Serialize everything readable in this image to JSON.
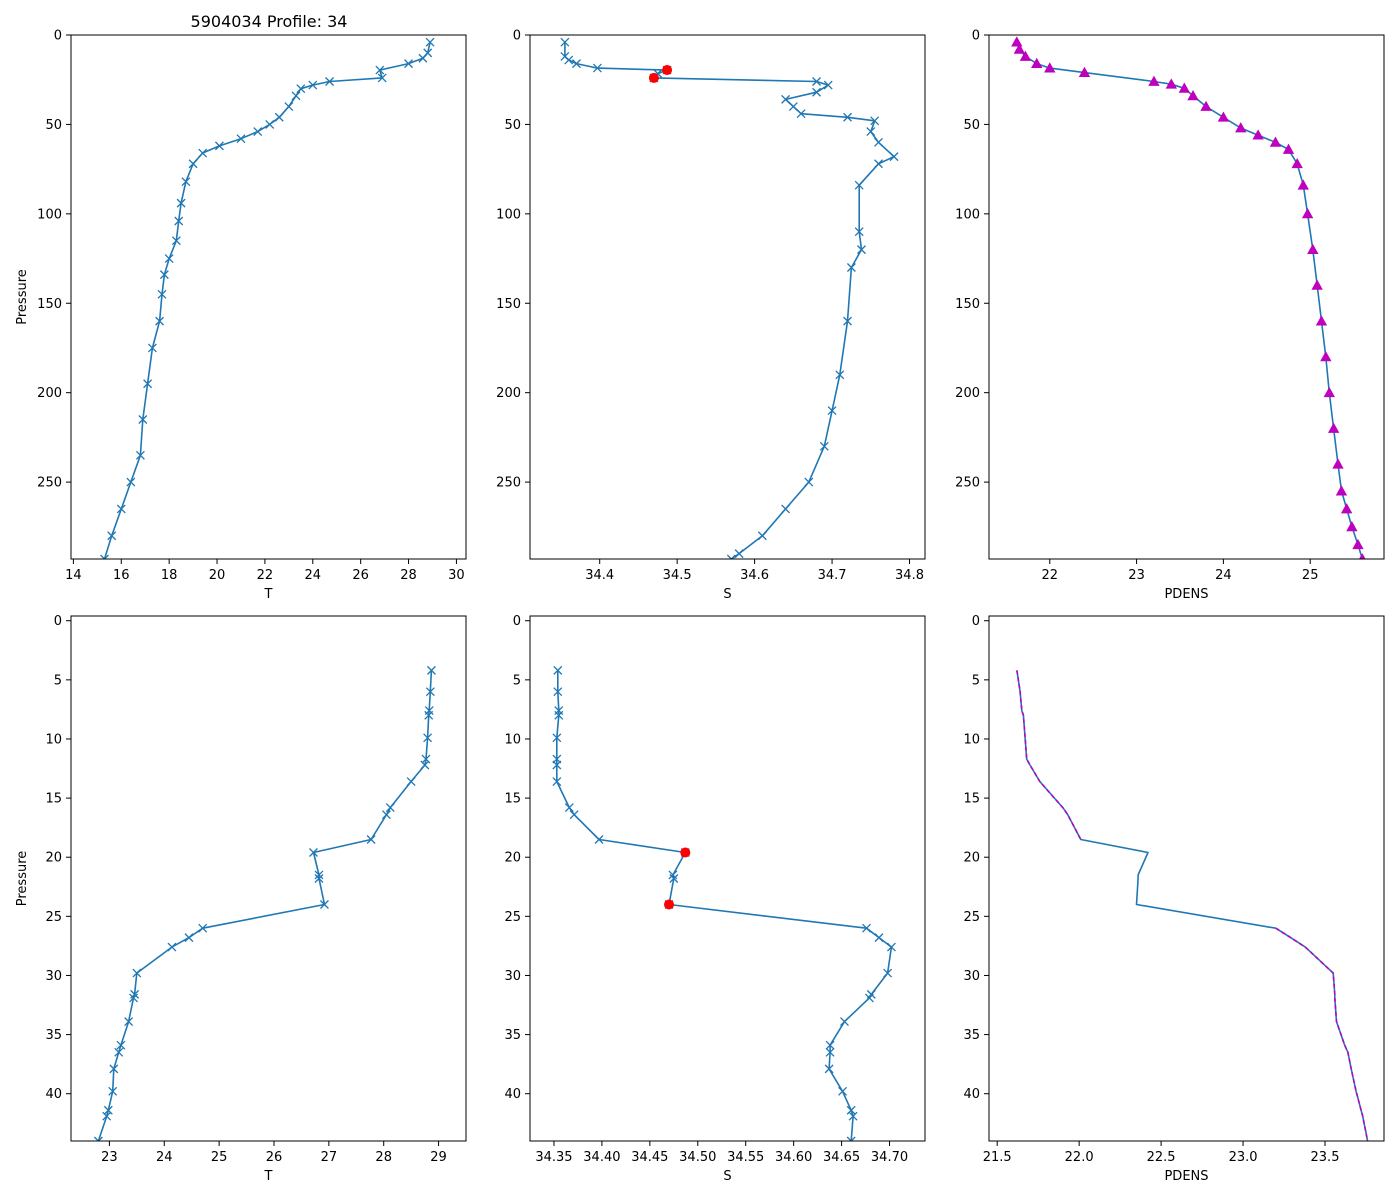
{
  "figure_title": "5904034 Profile: 34",
  "colors": {
    "line": "#1f77b4",
    "flag": "#ff0000",
    "pdens": "#bf00bf"
  },
  "chart_data": [
    {
      "id": "t-full",
      "type": "line",
      "xlabel": "T",
      "ylabel": "Pressure",
      "xlim": [
        13.9,
        30.4
      ],
      "ylim": [
        293,
        0
      ],
      "xticks": [
        14,
        16,
        18,
        20,
        22,
        24,
        26,
        28,
        30
      ],
      "yticks": [
        0,
        50,
        100,
        150,
        200,
        250
      ],
      "marker": "x",
      "series": [
        {
          "name": "T",
          "x": [
            28.9,
            28.8,
            28.6,
            28.0,
            26.8,
            26.9,
            24.7,
            24.0,
            23.5,
            23.3,
            23.0,
            22.6,
            22.2,
            21.7,
            21.0,
            20.1,
            19.4,
            19.0,
            18.7,
            18.5,
            18.4,
            18.3,
            18.0,
            17.8,
            17.7,
            17.6,
            17.3,
            17.1,
            16.9,
            16.8,
            16.4,
            16.0,
            15.6,
            15.3
          ],
          "y": [
            4,
            10,
            13,
            16,
            19.6,
            24,
            26,
            28,
            30,
            34,
            40,
            46,
            50,
            54,
            58,
            62,
            66,
            72,
            82,
            94,
            104,
            115,
            125,
            134,
            145,
            160,
            175,
            195,
            215,
            235,
            250,
            265,
            280,
            293
          ]
        }
      ]
    },
    {
      "id": "s-full",
      "type": "line",
      "xlabel": "S",
      "ylabel": "",
      "xlim": [
        34.31,
        34.82
      ],
      "ylim": [
        293,
        0
      ],
      "xticks": [
        34.4,
        34.5,
        34.6,
        34.7,
        34.8
      ],
      "xtick_labels": [
        "34.4",
        "34.5",
        "34.6",
        "34.7",
        "34.8"
      ],
      "yticks": [
        0,
        50,
        100,
        150,
        200,
        250
      ],
      "marker": "x",
      "series": [
        {
          "name": "S",
          "x": [
            34.355,
            34.355,
            34.36,
            34.37,
            34.397,
            34.487,
            34.475,
            34.47,
            34.68,
            34.695,
            34.68,
            34.64,
            34.65,
            34.66,
            34.72,
            34.755,
            34.75,
            34.76,
            34.78,
            34.76,
            34.735,
            34.735,
            34.738,
            34.725,
            34.72,
            34.71,
            34.7,
            34.69,
            34.67,
            34.64,
            34.61,
            34.58,
            34.57
          ],
          "y": [
            4,
            12,
            14,
            16,
            18.5,
            19.6,
            21.6,
            24,
            26,
            28,
            32,
            36,
            40,
            44,
            46,
            48,
            54,
            60,
            68,
            72,
            84,
            110,
            120,
            130,
            160,
            190,
            210,
            230,
            250,
            265,
            280,
            290,
            293
          ]
        }
      ],
      "flags": {
        "x": [
          34.487,
          34.47
        ],
        "y": [
          19.6,
          24.0
        ]
      }
    },
    {
      "id": "pdens-full",
      "type": "scatter",
      "xlabel": "PDENS",
      "ylabel": "",
      "xlim": [
        21.3,
        25.85
      ],
      "ylim": [
        293,
        0
      ],
      "xticks": [
        22,
        23,
        24,
        25
      ],
      "yticks": [
        0,
        50,
        100,
        150,
        200,
        250
      ],
      "marker": "triangle",
      "series": [
        {
          "name": "PDENS",
          "x": [
            21.62,
            21.65,
            21.72,
            21.85,
            22.0,
            22.4,
            23.2,
            23.4,
            23.55,
            23.65,
            23.8,
            24.0,
            24.2,
            24.4,
            24.6,
            24.75,
            24.85,
            24.92,
            24.97,
            25.03,
            25.08,
            25.13,
            25.18,
            25.22,
            25.27,
            25.32,
            25.36,
            25.42,
            25.48,
            25.55,
            25.6
          ],
          "y": [
            4,
            8,
            12,
            16,
            18.5,
            21,
            26,
            27.5,
            29.8,
            34,
            40,
            46,
            52,
            56,
            60,
            64,
            72,
            84,
            100,
            120,
            140,
            160,
            180,
            200,
            220,
            240,
            255,
            265,
            275,
            285,
            293
          ]
        }
      ]
    },
    {
      "id": "t-zoom",
      "type": "line",
      "xlabel": "T",
      "ylabel": "Pressure",
      "xlim": [
        22.3,
        29.5
      ],
      "ylim": [
        44,
        -0.4
      ],
      "xticks": [
        23,
        24,
        25,
        26,
        27,
        28,
        29
      ],
      "yticks": [
        0,
        5,
        10,
        15,
        20,
        25,
        30,
        35,
        40
      ],
      "marker": "x",
      "series": [
        {
          "name": "T",
          "x": [
            28.87,
            28.85,
            28.83,
            28.82,
            28.8,
            28.77,
            28.75,
            28.5,
            28.12,
            28.05,
            27.77,
            26.72,
            26.82,
            26.82,
            26.92,
            24.7,
            24.45,
            24.14,
            23.5,
            23.46,
            23.44,
            23.35,
            23.21,
            23.17,
            23.08,
            23.06,
            22.98,
            22.95,
            22.8
          ],
          "y": [
            4.2,
            6.0,
            7.6,
            8.0,
            9.9,
            11.7,
            12.2,
            13.6,
            15.8,
            16.4,
            18.5,
            19.6,
            21.5,
            21.8,
            24.0,
            26.0,
            26.8,
            27.6,
            29.8,
            31.6,
            31.9,
            33.9,
            35.9,
            36.5,
            37.9,
            39.8,
            41.4,
            41.9,
            44.0
          ]
        }
      ]
    },
    {
      "id": "s-zoom",
      "type": "line",
      "xlabel": "S",
      "ylabel": "",
      "xlim": [
        34.325,
        34.737
      ],
      "ylim": [
        44,
        -0.4
      ],
      "xticks": [
        34.35,
        34.4,
        34.45,
        34.5,
        34.55,
        34.6,
        34.65,
        34.7
      ],
      "xtick_labels": [
        "34.35",
        "34.40",
        "34.45",
        "34.50",
        "34.55",
        "34.60",
        "34.65",
        "34.70"
      ],
      "yticks": [
        0,
        5,
        10,
        15,
        20,
        25,
        30,
        35,
        40
      ],
      "marker": "x",
      "series": [
        {
          "name": "S",
          "x": [
            34.354,
            34.354,
            34.355,
            34.355,
            34.353,
            34.353,
            34.353,
            34.353,
            34.366,
            34.371,
            34.397,
            34.487,
            34.474,
            34.475,
            34.47,
            34.676,
            34.689,
            34.702,
            34.698,
            34.681,
            34.679,
            34.653,
            34.638,
            34.638,
            34.637,
            34.651,
            34.66,
            34.662,
            34.66
          ],
          "y": [
            4.2,
            6.0,
            7.6,
            8.0,
            9.9,
            11.7,
            12.2,
            13.6,
            15.8,
            16.4,
            18.5,
            19.6,
            21.5,
            21.8,
            24.0,
            26.0,
            26.8,
            27.6,
            29.8,
            31.6,
            31.9,
            33.9,
            35.9,
            36.5,
            37.9,
            39.8,
            41.4,
            41.9,
            44.0
          ]
        }
      ],
      "flags": {
        "x": [
          34.487,
          34.47
        ],
        "y": [
          19.6,
          24.0
        ]
      }
    },
    {
      "id": "pdens-zoom",
      "type": "line",
      "xlabel": "PDENS",
      "ylabel": "",
      "xlim": [
        21.45,
        23.86
      ],
      "ylim": [
        44,
        -0.4
      ],
      "xticks": [
        21.5,
        22.0,
        22.5,
        23.0,
        23.5
      ],
      "xtick_labels": [
        "21.5",
        "22.0",
        "22.5",
        "23.0",
        "23.5"
      ],
      "yticks": [
        0,
        5,
        10,
        15,
        20,
        25,
        30,
        35,
        40
      ],
      "marker": "none",
      "series": [
        {
          "name": "PDENS",
          "x": [
            21.62,
            21.64,
            21.65,
            21.66,
            21.67,
            21.68,
            21.7,
            21.76,
            21.9,
            21.93,
            22.01,
            22.42,
            22.36,
            22.36,
            22.35,
            23.2,
            23.29,
            23.38,
            23.55,
            23.56,
            23.56,
            23.57,
            23.62,
            23.64,
            23.66,
            23.69,
            23.72,
            23.73,
            23.76
          ],
          "y": [
            4.2,
            6.0,
            7.6,
            8.0,
            9.9,
            11.7,
            12.2,
            13.6,
            15.8,
            16.4,
            18.5,
            19.6,
            21.5,
            21.8,
            24.0,
            26.0,
            26.8,
            27.6,
            29.8,
            31.6,
            31.9,
            33.9,
            35.9,
            36.5,
            37.9,
            39.8,
            41.4,
            41.9,
            44.0
          ]
        }
      ],
      "dashed_overlay": {
        "x_segments": [
          [
            21.62,
            21.64,
            21.65,
            21.66,
            21.67,
            21.68,
            21.7,
            21.76,
            21.9,
            21.93,
            22.01
          ],
          [
            23.2,
            23.29,
            23.38,
            23.55,
            23.56,
            23.56,
            23.57,
            23.62,
            23.64,
            23.66,
            23.69,
            23.72,
            23.73,
            23.76
          ]
        ],
        "y_segments": [
          [
            4.2,
            6.0,
            7.6,
            8.0,
            9.9,
            11.7,
            12.2,
            13.6,
            15.8,
            16.4,
            18.5
          ],
          [
            26.0,
            26.8,
            27.6,
            29.8,
            31.6,
            31.9,
            33.9,
            35.9,
            36.5,
            37.9,
            39.8,
            41.4,
            41.9,
            44.0
          ]
        ]
      }
    }
  ]
}
